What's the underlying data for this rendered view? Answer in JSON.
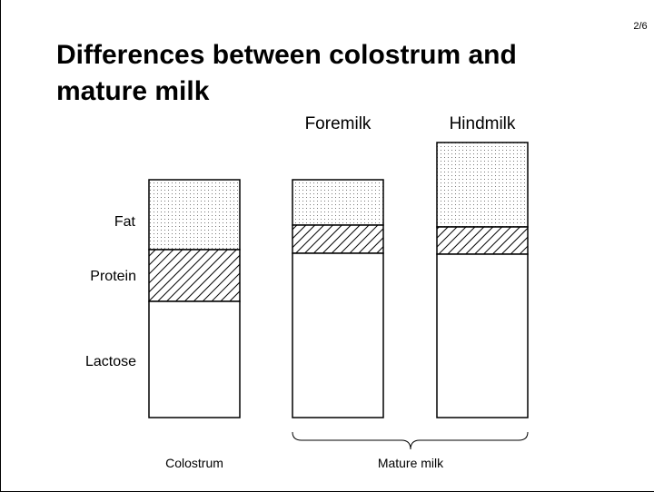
{
  "slide": {
    "page": "2/6",
    "title_lines": [
      "Differences between colostrum and",
      "mature milk"
    ],
    "components": [
      "Fat",
      "Protein",
      "Lactose"
    ],
    "column_headers": [
      "Foremilk",
      "Hindmilk"
    ],
    "group_labels": [
      "Colostrum",
      "Mature milk"
    ]
  }
}
